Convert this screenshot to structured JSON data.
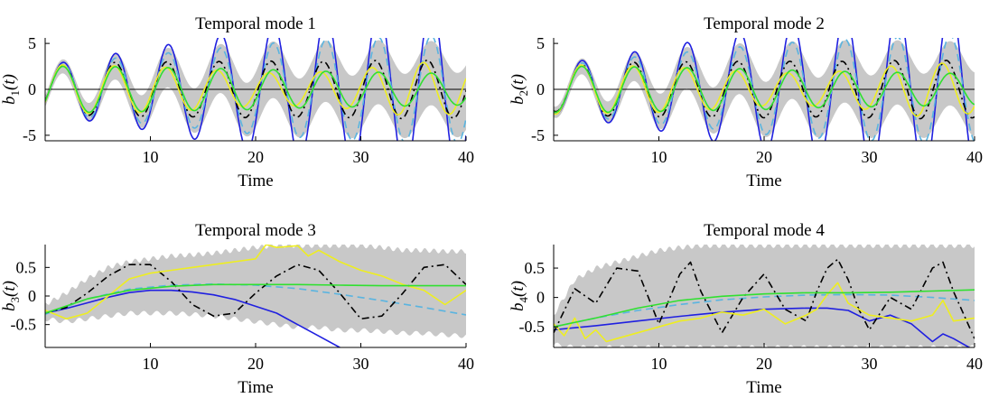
{
  "chart_data": [
    {
      "type": "line",
      "title": "Temporal mode 1",
      "xlabel": "Time",
      "ylabel": {
        "base": "b",
        "sub": "1",
        "suffix": "(t)"
      },
      "xlim": [
        0,
        40
      ],
      "ylim": [
        -5.6,
        5.6
      ],
      "xticks": [
        10,
        20,
        30,
        40
      ],
      "yticks": [
        -5,
        0,
        5
      ],
      "zero_line": true,
      "band": {
        "color": "#c8c8c8",
        "x": [
          0,
          2,
          4,
          6,
          8,
          10,
          12,
          14,
          16,
          18,
          20,
          22,
          24,
          26,
          28,
          30,
          32,
          34,
          36,
          38,
          40
        ],
        "half_width": [
          0.6,
          0.8,
          1.0,
          1.3,
          1.6,
          1.9,
          2.2,
          2.4,
          2.6,
          2.8,
          3.0,
          3.1,
          3.2,
          3.3,
          3.4,
          3.4,
          3.5,
          3.5,
          3.5,
          3.5,
          3.5
        ]
      },
      "series": [
        {
          "color": "#2020e0",
          "dash": "",
          "x": [
            0,
            5,
            10,
            15,
            20,
            25,
            30,
            35,
            40
          ],
          "amplitude": [
            2.6,
            3.6,
            4.5,
            5.6,
            6.8,
            7.8,
            8.6,
            9.2,
            9.6
          ],
          "period": 5.0,
          "phase": -0.55
        },
        {
          "color": "#5ab4e0",
          "dash": "8,5",
          "x": [
            0,
            5,
            10,
            15,
            20,
            25,
            30,
            35,
            40
          ],
          "amplitude": [
            2.5,
            3.2,
            3.8,
            4.3,
            4.9,
            5.3,
            5.6,
            5.8,
            5.9
          ],
          "period": 5.0,
          "phase": -0.55
        },
        {
          "color": "#000000",
          "dash": "8,4,2,4",
          "x": [
            0,
            5,
            10,
            15,
            20,
            25,
            30,
            35,
            40
          ],
          "amplitude": [
            2.4,
            2.9,
            3.0,
            3.0,
            3.1,
            3.0,
            3.1,
            3.2,
            3.1
          ],
          "period": 4.95,
          "phase": -0.55
        },
        {
          "color": "#eeee20",
          "dash": "",
          "x": [
            0,
            5,
            10,
            15,
            20,
            25,
            30,
            35,
            40
          ],
          "amplitude": [
            2.7,
            2.6,
            2.5,
            2.2,
            1.8,
            1.8,
            2.2,
            3.0,
            2.6
          ],
          "period": 4.9,
          "phase": -0.55
        },
        {
          "color": "#30e030",
          "dash": "",
          "x": [
            0,
            5,
            10,
            15,
            20,
            25,
            30,
            35,
            40
          ],
          "amplitude": [
            2.5,
            2.5,
            2.4,
            2.3,
            2.2,
            2.0,
            1.9,
            1.8,
            1.7
          ],
          "period": 5.0,
          "phase": -0.55
        }
      ]
    },
    {
      "type": "line",
      "title": "Temporal mode 2",
      "xlabel": "Time",
      "ylabel": {
        "base": "b",
        "sub": "2",
        "suffix": "(t)"
      },
      "xlim": [
        0,
        40
      ],
      "ylim": [
        -5.6,
        5.6
      ],
      "xticks": [
        10,
        20,
        30,
        40
      ],
      "yticks": [
        -5,
        0,
        5
      ],
      "zero_line": true,
      "band": {
        "color": "#c8c8c8",
        "x": [
          0,
          2,
          4,
          6,
          8,
          10,
          12,
          14,
          16,
          18,
          20,
          22,
          24,
          26,
          28,
          30,
          32,
          34,
          36,
          38,
          40
        ],
        "half_width": [
          0.6,
          0.8,
          1.0,
          1.3,
          1.6,
          1.9,
          2.2,
          2.4,
          2.6,
          2.8,
          3.0,
          3.1,
          3.2,
          3.3,
          3.4,
          3.4,
          3.5,
          3.5,
          3.5,
          3.5,
          3.5
        ]
      },
      "series": [
        {
          "color": "#2020e0",
          "dash": "",
          "x": [
            0,
            5,
            10,
            15,
            20,
            25,
            30,
            35,
            40
          ],
          "amplitude": [
            2.6,
            3.6,
            4.5,
            5.6,
            6.8,
            7.8,
            8.6,
            9.2,
            9.6
          ],
          "period": 5.0,
          "phase": -1.8
        },
        {
          "color": "#5ab4e0",
          "dash": "8,5",
          "x": [
            0,
            5,
            10,
            15,
            20,
            25,
            30,
            35,
            40
          ],
          "amplitude": [
            2.5,
            3.2,
            3.8,
            4.3,
            4.9,
            5.3,
            5.6,
            5.8,
            5.9
          ],
          "period": 5.0,
          "phase": -1.8
        },
        {
          "color": "#000000",
          "dash": "8,4,2,4",
          "x": [
            0,
            5,
            10,
            15,
            20,
            25,
            30,
            35,
            40
          ],
          "amplitude": [
            2.4,
            2.9,
            3.0,
            3.0,
            3.1,
            3.0,
            3.1,
            3.2,
            3.1
          ],
          "period": 4.95,
          "phase": -1.8
        },
        {
          "color": "#eeee20",
          "dash": "",
          "x": [
            0,
            5,
            10,
            15,
            20,
            25,
            30,
            35,
            40
          ],
          "amplitude": [
            2.7,
            2.6,
            2.5,
            2.2,
            1.8,
            1.8,
            2.2,
            3.0,
            2.6
          ],
          "period": 4.9,
          "phase": -1.8
        },
        {
          "color": "#30e030",
          "dash": "",
          "x": [
            0,
            5,
            10,
            15,
            20,
            25,
            30,
            35,
            40
          ],
          "amplitude": [
            2.5,
            2.5,
            2.4,
            2.3,
            2.2,
            2.0,
            1.9,
            1.8,
            1.7
          ],
          "period": 5.0,
          "phase": -1.8
        }
      ]
    },
    {
      "type": "line",
      "title": "Temporal mode 3",
      "xlabel": "Time",
      "ylabel": {
        "base": "b",
        "sub": "3",
        "suffix": "(t)"
      },
      "xlim": [
        0,
        40
      ],
      "ylim": [
        -0.9,
        0.9
      ],
      "xticks": [
        10,
        20,
        30,
        40
      ],
      "yticks": [
        -0.5,
        0,
        0.5
      ],
      "zero_line": false,
      "band": {
        "color": "#c8c8c8",
        "x": [
          0,
          2,
          4,
          6,
          8,
          10,
          12,
          14,
          16,
          18,
          20,
          22,
          24,
          26,
          28,
          30,
          32,
          34,
          36,
          38,
          40
        ],
        "lower": [
          -0.4,
          -0.45,
          -0.4,
          -0.35,
          -0.3,
          -0.3,
          -0.3,
          -0.32,
          -0.35,
          -0.4,
          -0.45,
          -0.5,
          -0.55,
          -0.55,
          -0.6,
          -0.6,
          -0.62,
          -0.65,
          -0.65,
          -0.68,
          -0.7
        ],
        "upper": [
          -0.15,
          0.05,
          0.3,
          0.5,
          0.6,
          0.65,
          0.7,
          0.72,
          0.75,
          0.8,
          0.85,
          0.88,
          0.88,
          0.88,
          0.88,
          0.88,
          0.85,
          0.8,
          0.8,
          0.78,
          0.78
        ]
      },
      "series": [
        {
          "color": "#2020e0",
          "dash": "",
          "x": [
            0,
            2,
            4,
            6,
            8,
            10,
            12,
            14,
            16,
            18,
            20,
            22,
            24,
            26,
            28
          ],
          "y": [
            -0.3,
            -0.22,
            -0.12,
            -0.02,
            0.06,
            0.1,
            0.1,
            0.07,
            0.02,
            -0.06,
            -0.18,
            -0.3,
            -0.5,
            -0.7,
            -0.9
          ]
        },
        {
          "color": "#5ab4e0",
          "dash": "8,5",
          "x": [
            0,
            4,
            8,
            12,
            16,
            20,
            24,
            28,
            32,
            36,
            40
          ],
          "y": [
            -0.32,
            -0.05,
            0.12,
            0.19,
            0.21,
            0.19,
            0.13,
            0.03,
            -0.08,
            -0.2,
            -0.33
          ]
        },
        {
          "color": "#000000",
          "dash": "8,4,2,4",
          "x": [
            0,
            2,
            4,
            6,
            8,
            10,
            12,
            14,
            16,
            18,
            20,
            22,
            24,
            26,
            28,
            30,
            32,
            34,
            36,
            38,
            40
          ],
          "y": [
            -0.3,
            -0.2,
            0.05,
            0.35,
            0.55,
            0.55,
            0.25,
            -0.15,
            -0.35,
            -0.3,
            0.05,
            0.35,
            0.55,
            0.45,
            0.05,
            -0.4,
            -0.35,
            0.05,
            0.5,
            0.55,
            0.2
          ]
        },
        {
          "color": "#eeee20",
          "dash": "",
          "x": [
            0,
            2,
            4,
            6,
            8,
            10,
            12,
            14,
            16,
            18,
            20,
            21,
            22,
            24,
            25,
            26,
            28,
            30,
            32,
            34,
            36,
            38,
            40
          ],
          "y": [
            -0.25,
            -0.4,
            -0.3,
            0.0,
            0.3,
            0.4,
            0.45,
            0.5,
            0.55,
            0.6,
            0.65,
            0.9,
            0.85,
            0.88,
            0.7,
            0.8,
            0.6,
            0.45,
            0.35,
            0.2,
            0.1,
            -0.15,
            0.1
          ]
        },
        {
          "color": "#30e030",
          "dash": "",
          "x": [
            0,
            4,
            8,
            12,
            16,
            20,
            24,
            28,
            32,
            36,
            40
          ],
          "y": [
            -0.3,
            -0.05,
            0.1,
            0.17,
            0.2,
            0.2,
            0.2,
            0.19,
            0.18,
            0.18,
            0.18
          ]
        }
      ]
    },
    {
      "type": "line",
      "title": "Temporal mode 4",
      "xlabel": "Time",
      "ylabel": {
        "base": "b",
        "sub": "4",
        "suffix": "(t)"
      },
      "xlim": [
        0,
        40
      ],
      "ylim": [
        -0.85,
        0.9
      ],
      "xticks": [
        10,
        20,
        30,
        40
      ],
      "yticks": [
        -0.5,
        0,
        0.5
      ],
      "zero_line": false,
      "band": {
        "color": "#c8c8c8",
        "x": [
          0,
          2,
          4,
          6,
          8,
          10,
          12,
          14,
          16,
          18,
          20,
          22,
          24,
          26,
          28,
          30,
          32,
          34,
          36,
          38,
          40
        ],
        "lower": [
          -0.8,
          -0.85,
          -0.85,
          -0.85,
          -0.85,
          -0.85,
          -0.85,
          -0.85,
          -0.85,
          -0.85,
          -0.85,
          -0.85,
          -0.85,
          -0.85,
          -0.85,
          -0.85,
          -0.85,
          -0.85,
          -0.85,
          -0.85,
          -0.85
        ],
        "upper": [
          -0.3,
          0.3,
          0.5,
          0.6,
          0.7,
          0.8,
          0.85,
          0.88,
          0.88,
          0.88,
          0.88,
          0.88,
          0.88,
          0.88,
          0.88,
          0.88,
          0.88,
          0.88,
          0.88,
          0.88,
          0.88
        ]
      },
      "series": [
        {
          "color": "#2020e0",
          "dash": "",
          "x": [
            0,
            4,
            8,
            12,
            16,
            20,
            24,
            26,
            28,
            30,
            32,
            34,
            35,
            36,
            37,
            38,
            40
          ],
          "y": [
            -0.55,
            -0.48,
            -0.4,
            -0.32,
            -0.25,
            -0.2,
            -0.18,
            -0.18,
            -0.22,
            -0.4,
            -0.3,
            -0.45,
            -0.6,
            -0.75,
            -0.62,
            -0.7,
            -0.9
          ]
        },
        {
          "color": "#5ab4e0",
          "dash": "8,5",
          "x": [
            0,
            4,
            8,
            12,
            16,
            20,
            24,
            28,
            32,
            36,
            40
          ],
          "y": [
            -0.5,
            -0.35,
            -0.22,
            -0.12,
            -0.04,
            0.01,
            0.04,
            0.05,
            0.04,
            0.0,
            -0.05
          ]
        },
        {
          "color": "#000000",
          "dash": "8,4,2,4",
          "x": [
            0,
            2,
            4,
            6,
            8,
            9,
            10,
            12,
            13,
            14,
            16,
            18,
            20,
            22,
            24,
            25,
            26,
            27,
            28,
            29,
            30,
            32,
            34,
            36,
            37,
            38,
            40
          ],
          "y": [
            -0.6,
            0.15,
            -0.1,
            0.5,
            0.45,
            0.0,
            -0.45,
            0.4,
            0.6,
            0.1,
            -0.6,
            0.0,
            0.4,
            -0.2,
            -0.4,
            0.1,
            0.5,
            0.65,
            0.3,
            -0.2,
            -0.55,
            0.0,
            -0.2,
            0.5,
            0.6,
            0.1,
            -0.7
          ]
        },
        {
          "color": "#eeee20",
          "dash": "",
          "x": [
            0,
            1,
            2,
            3,
            4,
            5,
            6,
            8,
            10,
            12,
            14,
            16,
            18,
            20,
            22,
            24,
            25,
            26,
            27,
            28,
            29,
            30,
            32,
            34,
            36,
            37,
            38,
            40
          ],
          "y": [
            -0.45,
            -0.65,
            -0.35,
            -0.7,
            -0.55,
            -0.75,
            -0.7,
            -0.6,
            -0.5,
            -0.4,
            -0.35,
            -0.25,
            -0.3,
            -0.2,
            -0.45,
            -0.3,
            -0.2,
            0.05,
            0.25,
            -0.1,
            -0.2,
            -0.3,
            -0.35,
            -0.4,
            -0.3,
            -0.05,
            -0.4,
            -0.35
          ]
        },
        {
          "color": "#30e030",
          "dash": "",
          "x": [
            0,
            4,
            8,
            12,
            16,
            20,
            24,
            28,
            32,
            36,
            40
          ],
          "y": [
            -0.5,
            -0.35,
            -0.18,
            -0.05,
            0.02,
            0.06,
            0.08,
            0.08,
            0.09,
            0.11,
            0.13
          ]
        }
      ]
    }
  ]
}
